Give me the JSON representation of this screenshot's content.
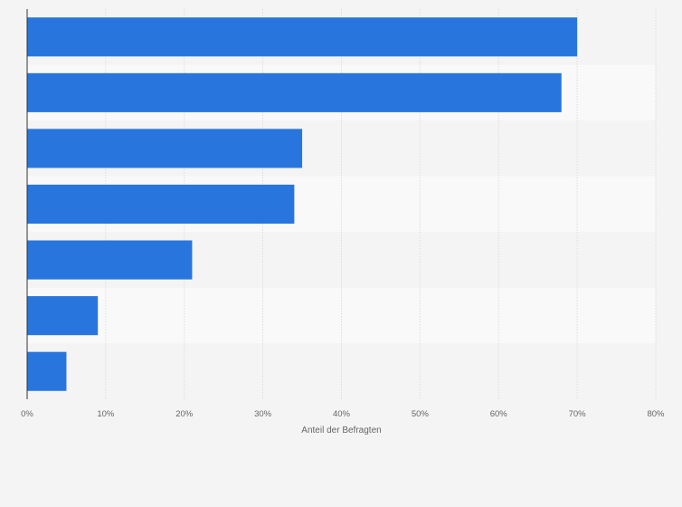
{
  "chart_data": {
    "type": "bar",
    "orientation": "horizontal",
    "categories": [
      "",
      "",
      "",
      "",
      "",
      "",
      ""
    ],
    "values": [
      70,
      68,
      35,
      34,
      21,
      9,
      5
    ],
    "xlabel": "Anteil der Befragten",
    "ylabel": "",
    "xlim": [
      0,
      80
    ],
    "x_ticks": [
      "0%",
      "10%",
      "20%",
      "30%",
      "40%",
      "50%",
      "60%",
      "70%",
      "80%"
    ],
    "grid": true,
    "bar_color": "#2876dd",
    "band_colors": [
      "#f4f4f4",
      "#f9f9f9"
    ]
  }
}
